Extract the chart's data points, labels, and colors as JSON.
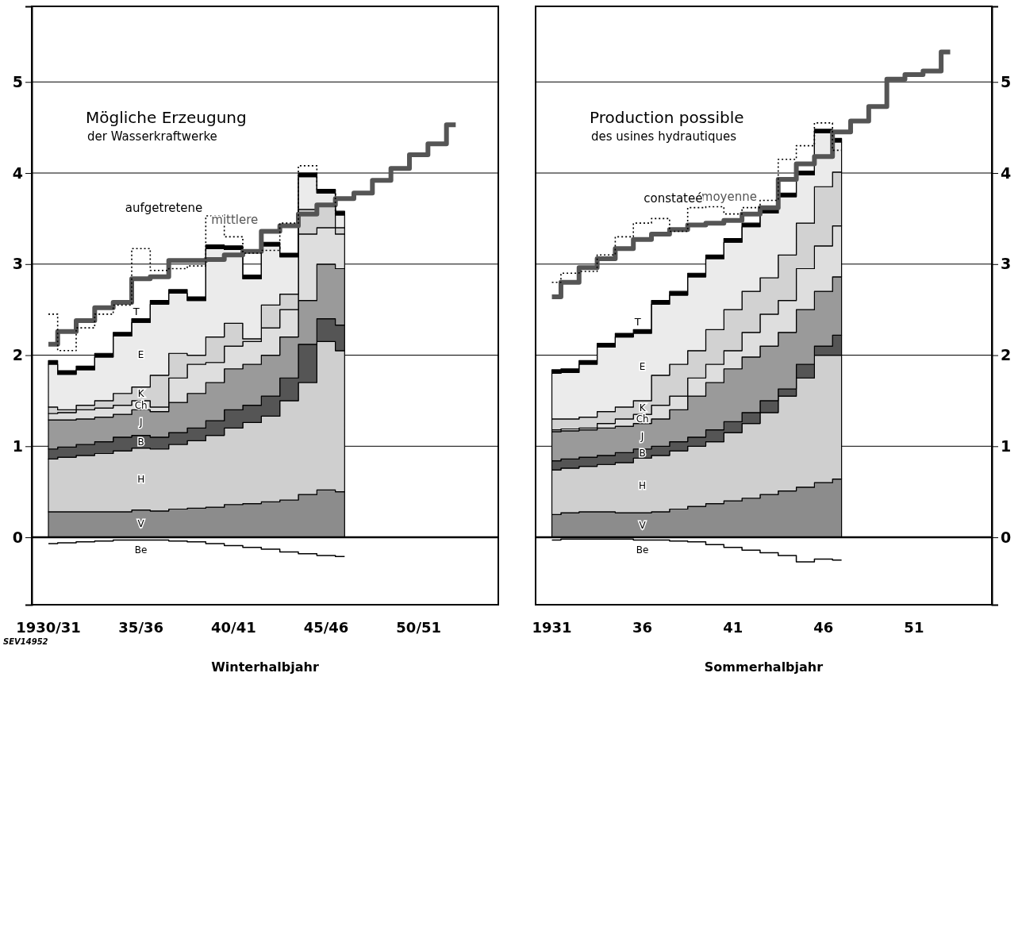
{
  "chart_data": [
    {
      "type": "area",
      "stacked": true,
      "grid": "y",
      "xlabel": "Winterhalbjahr",
      "annotations": [
        "Mögliche Erzeugung",
        "der Wasserkraftwerke",
        "SEV14952"
      ],
      "categories": [
        "1930/31",
        null,
        null,
        null,
        null,
        "35/36",
        null,
        null,
        null,
        null,
        "40/41",
        null,
        null,
        null,
        null,
        "45/46",
        null,
        null,
        null,
        null,
        "50/51",
        null,
        null
      ],
      "ylim": [
        -0.74,
        5.83
      ],
      "yticks": [
        0,
        1,
        2,
        3,
        4,
        5
      ],
      "series": [
        {
          "name": "V",
          "color": "#8c8c8c",
          "values": [
            0.28,
            0.28,
            0.28,
            0.28,
            0.28,
            0.3,
            0.29,
            0.31,
            0.32,
            0.33,
            0.36,
            0.37,
            0.39,
            0.41,
            0.47,
            0.52,
            0.5,
            null,
            null,
            null,
            null,
            null,
            null
          ]
        },
        {
          "name": "H",
          "color": "#cfcfcf",
          "values": [
            0.58,
            0.6,
            0.62,
            0.64,
            0.67,
            0.68,
            0.68,
            0.71,
            0.74,
            0.79,
            0.84,
            0.89,
            0.94,
            1.09,
            1.23,
            1.63,
            1.55,
            null,
            null,
            null,
            null,
            null,
            null
          ]
        },
        {
          "name": "B",
          "color": "#555555",
          "values": [
            0.11,
            0.11,
            0.12,
            0.13,
            0.15,
            0.14,
            0.13,
            0.13,
            0.14,
            0.16,
            0.2,
            0.19,
            0.22,
            0.25,
            0.42,
            0.25,
            0.28,
            null,
            null,
            null,
            null,
            null,
            null
          ]
        },
        {
          "name": "J",
          "color": "#9a9a9a",
          "values": [
            0.32,
            0.3,
            0.28,
            0.27,
            0.25,
            0.28,
            0.28,
            0.33,
            0.38,
            0.42,
            0.45,
            0.45,
            0.45,
            0.45,
            0.48,
            0.6,
            0.62,
            null,
            null,
            null,
            null,
            null,
            null
          ]
        },
        {
          "name": "Ch",
          "color": "#dedede",
          "values": [
            0.07,
            0.08,
            0.1,
            0.1,
            0.1,
            0.1,
            0.05,
            0.27,
            0.32,
            0.22,
            0.25,
            0.25,
            0.3,
            0.3,
            0.73,
            0.4,
            0.38,
            null,
            null,
            null,
            null,
            null,
            null
          ]
        },
        {
          "name": "K",
          "color": "#d2d2d2",
          "values": [
            0.07,
            0.03,
            0.05,
            0.08,
            0.13,
            0.15,
            0.35,
            0.27,
            0.1,
            0.28,
            0.25,
            0.03,
            0.25,
            0.17,
            0.27,
            0.25,
            0.07,
            null,
            null,
            null,
            null,
            null,
            null
          ]
        },
        {
          "name": "E",
          "color": "#ebebeb",
          "values": [
            0.47,
            0.39,
            0.39,
            0.48,
            0.63,
            0.71,
            0.78,
            0.66,
            0.6,
            0.97,
            0.81,
            0.66,
            0.65,
            0.41,
            0.36,
            0.13,
            0.14,
            null,
            null,
            null,
            null,
            null,
            null
          ]
        },
        {
          "name": "T",
          "color": "#000000",
          "values": [
            0.04,
            0.04,
            0.04,
            0.04,
            0.04,
            0.04,
            0.04,
            0.04,
            0.04,
            0.04,
            0.04,
            0.04,
            0.04,
            0.04,
            0.04,
            0.04,
            0.04,
            null,
            null,
            null,
            null,
            null,
            null
          ]
        },
        {
          "name": "mittlere",
          "type": "step",
          "color": "#555555",
          "line_style": "solid",
          "values": [
            2.12,
            2.26,
            2.38,
            2.52,
            2.58,
            2.84,
            2.86,
            3.04,
            3.04,
            3.05,
            3.1,
            3.14,
            3.36,
            3.42,
            3.55,
            3.65,
            3.72,
            3.78,
            3.92,
            4.05,
            4.2,
            4.32,
            4.53
          ]
        },
        {
          "name": "aufgetretene",
          "type": "step",
          "color": "#000000",
          "line_style": "dotted",
          "values": [
            2.45,
            2.05,
            2.3,
            2.45,
            2.55,
            3.17,
            2.93,
            2.95,
            2.98,
            3.53,
            3.3,
            3.12,
            3.15,
            3.45,
            4.08,
            3.8,
            3.55,
            null,
            null,
            null,
            null,
            null,
            null
          ]
        },
        {
          "name": "Be",
          "type": "step",
          "color": "#000000",
          "line_style": "solid",
          "values": [
            -0.07,
            -0.06,
            -0.05,
            -0.04,
            -0.03,
            -0.03,
            -0.03,
            -0.04,
            -0.05,
            -0.07,
            -0.09,
            -0.11,
            -0.13,
            -0.16,
            -0.18,
            -0.2,
            -0.21,
            null,
            null,
            null,
            null,
            null,
            null
          ]
        }
      ]
    },
    {
      "type": "area",
      "stacked": true,
      "grid": "y",
      "xlabel": "Sommerhalbjahr",
      "annotations": [
        "Production possible",
        "des usines hydrautiques"
      ],
      "categories": [
        "1931",
        null,
        null,
        null,
        null,
        "36",
        null,
        null,
        null,
        null,
        "41",
        null,
        null,
        null,
        null,
        "46",
        null,
        null,
        null,
        null,
        "51",
        null,
        null
      ],
      "ylim": [
        -0.74,
        5.83
      ],
      "yticks": [
        0,
        1,
        2,
        3,
        4,
        5
      ],
      "series": [
        {
          "name": "V",
          "color": "#8c8c8c",
          "values": [
            0.25,
            0.27,
            0.28,
            0.28,
            0.27,
            0.27,
            0.28,
            0.31,
            0.34,
            0.37,
            0.4,
            0.43,
            0.47,
            0.51,
            0.55,
            0.6,
            0.64,
            null,
            null,
            null,
            null,
            null,
            null
          ]
        },
        {
          "name": "H",
          "color": "#cfcfcf",
          "values": [
            0.49,
            0.49,
            0.5,
            0.52,
            0.55,
            0.6,
            0.62,
            0.64,
            0.66,
            0.68,
            0.75,
            0.82,
            0.9,
            1.04,
            1.2,
            1.4,
            1.36,
            null,
            null,
            null,
            null,
            null,
            null
          ]
        },
        {
          "name": "B",
          "color": "#555555",
          "values": [
            0.1,
            0.1,
            0.1,
            0.1,
            0.11,
            0.1,
            0.1,
            0.1,
            0.1,
            0.13,
            0.12,
            0.12,
            0.13,
            0.08,
            0.15,
            0.1,
            0.22,
            null,
            null,
            null,
            null,
            null,
            null
          ]
        },
        {
          "name": "J",
          "color": "#9a9a9a",
          "values": [
            0.32,
            0.31,
            0.3,
            0.3,
            0.29,
            0.28,
            0.3,
            0.35,
            0.45,
            0.52,
            0.58,
            0.61,
            0.6,
            0.62,
            0.6,
            0.6,
            0.64,
            null,
            null,
            null,
            null,
            null,
            null
          ]
        },
        {
          "name": "Ch",
          "color": "#dedede",
          "values": [
            0.02,
            0.02,
            0.02,
            0.05,
            0.08,
            0.1,
            0.15,
            0.15,
            0.2,
            0.2,
            0.2,
            0.27,
            0.35,
            0.35,
            0.45,
            0.5,
            0.56,
            null,
            null,
            null,
            null,
            null,
            null
          ]
        },
        {
          "name": "K",
          "color": "#d2d2d2",
          "values": [
            0.12,
            0.11,
            0.12,
            0.13,
            0.13,
            0.15,
            0.33,
            0.35,
            0.3,
            0.38,
            0.45,
            0.45,
            0.4,
            0.5,
            0.5,
            0.65,
            0.59,
            null,
            null,
            null,
            null,
            null,
            null
          ]
        },
        {
          "name": "E",
          "color": "#ebebeb",
          "values": [
            0.5,
            0.51,
            0.58,
            0.71,
            0.77,
            0.74,
            0.78,
            0.76,
            0.81,
            0.78,
            0.74,
            0.71,
            0.71,
            0.64,
            0.53,
            0.59,
            0.33,
            null,
            null,
            null,
            null,
            null,
            null
          ]
        },
        {
          "name": "T",
          "color": "#000000",
          "values": [
            0.04,
            0.04,
            0.04,
            0.04,
            0.04,
            0.04,
            0.04,
            0.04,
            0.04,
            0.04,
            0.04,
            0.04,
            0.04,
            0.04,
            0.04,
            0.04,
            0.04,
            null,
            null,
            null,
            null,
            null,
            null
          ]
        },
        {
          "name": "moyenne",
          "type": "step",
          "color": "#555555",
          "line_style": "solid",
          "values": [
            2.64,
            2.8,
            2.96,
            3.06,
            3.17,
            3.27,
            3.33,
            3.38,
            3.43,
            3.45,
            3.48,
            3.55,
            3.62,
            3.93,
            4.1,
            4.18,
            4.45,
            4.57,
            4.73,
            5.03,
            5.08,
            5.12,
            5.33
          ]
        },
        {
          "name": "constateé",
          "type": "step",
          "color": "#000000",
          "line_style": "dotted",
          "values": [
            2.8,
            2.9,
            2.92,
            3.1,
            3.3,
            3.45,
            3.5,
            3.36,
            3.62,
            3.63,
            3.55,
            3.62,
            3.7,
            4.15,
            4.3,
            4.55,
            4.25,
            null,
            null,
            null,
            null,
            null,
            null
          ]
        },
        {
          "name": "Be",
          "type": "step",
          "color": "#000000",
          "line_style": "solid",
          "values": [
            -0.03,
            -0.02,
            -0.02,
            -0.02,
            -0.02,
            -0.03,
            -0.03,
            -0.04,
            -0.05,
            -0.08,
            -0.11,
            -0.14,
            -0.17,
            -0.2,
            -0.27,
            -0.24,
            -0.25,
            null,
            null,
            null,
            null,
            null,
            null
          ]
        }
      ]
    }
  ]
}
